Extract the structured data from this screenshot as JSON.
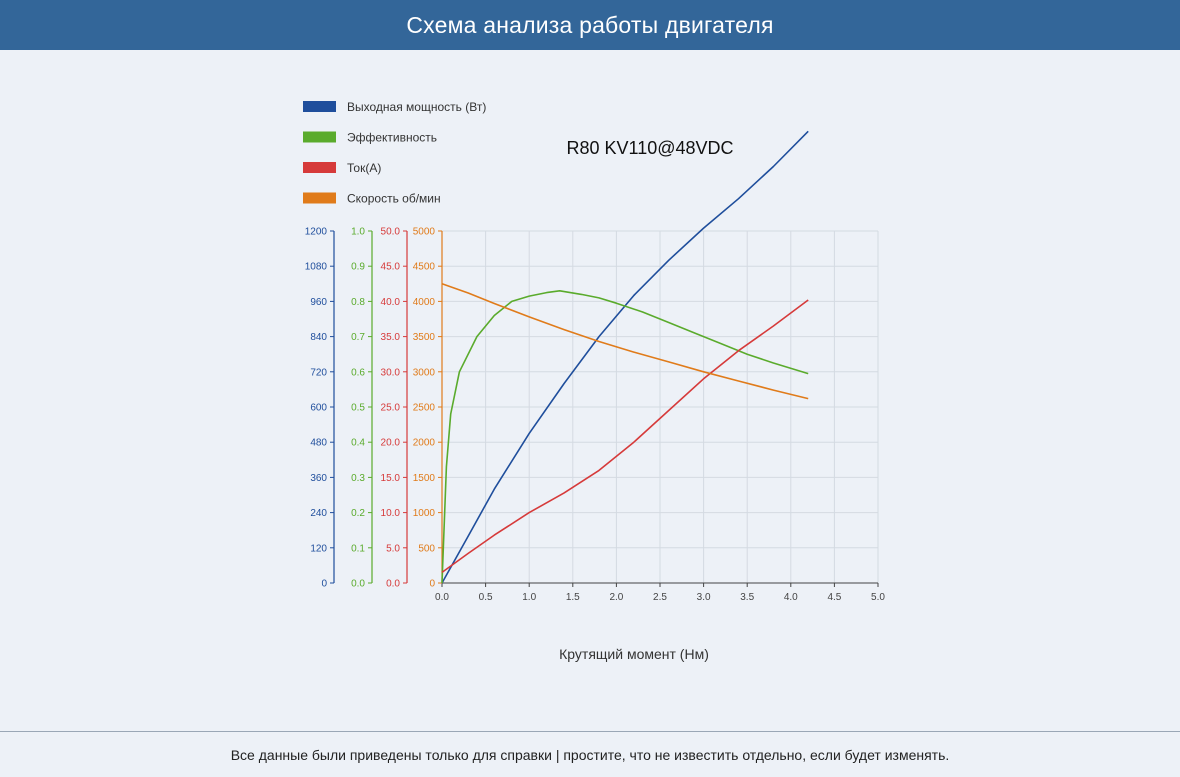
{
  "header": {
    "title": "Схема анализа работы двигателя"
  },
  "footer": {
    "note": "Все данные были приведены только для справки | простите, что не известить отдельно, если будет изменять."
  },
  "colors": {
    "power": "#1f4e9c",
    "efficiency": "#5aab2c",
    "current": "#d63a3a",
    "speed": "#e07b1a",
    "header_bg": "#336699"
  },
  "chart_data": {
    "type": "line",
    "title": "R80 KV110@48VDC",
    "xlabel": "Крутящий момент (Нм)",
    "xlim": [
      0,
      5
    ],
    "xticks": [
      "0.0",
      "0.5",
      "1.0",
      "1.5",
      "2.0",
      "2.5",
      "3.0",
      "3.5",
      "4.0",
      "4.5",
      "5.0"
    ],
    "legend_position": "top-left",
    "grid": true,
    "axes": [
      {
        "series": "power",
        "range": [
          0,
          1200
        ],
        "ticks": [
          "0",
          "120",
          "240",
          "360",
          "480",
          "600",
          "720",
          "840",
          "960",
          "1080",
          "1200"
        ]
      },
      {
        "series": "efficiency",
        "range": [
          0,
          1
        ],
        "ticks": [
          "0.0",
          "0.1",
          "0.2",
          "0.3",
          "0.4",
          "0.5",
          "0.6",
          "0.7",
          "0.8",
          "0.9",
          "1.0"
        ]
      },
      {
        "series": "current",
        "range": [
          0,
          50
        ],
        "ticks": [
          "0.0",
          "5.0",
          "10.0",
          "15.0",
          "20.0",
          "25.0",
          "30.0",
          "35.0",
          "40.0",
          "45.0",
          "50.0"
        ]
      },
      {
        "series": "speed",
        "range": [
          0,
          5000
        ],
        "ticks": [
          "0",
          "500",
          "1000",
          "1500",
          "2000",
          "2500",
          "3000",
          "3500",
          "4000",
          "4500",
          "5000"
        ]
      }
    ],
    "series": [
      {
        "key": "power",
        "name": "Выходная мощность (Вт)",
        "points": [
          [
            0,
            0
          ],
          [
            0.3,
            160
          ],
          [
            0.6,
            320
          ],
          [
            1.0,
            510
          ],
          [
            1.4,
            680
          ],
          [
            1.8,
            840
          ],
          [
            2.2,
            980
          ],
          [
            2.6,
            1100
          ],
          [
            3.0,
            1210
          ],
          [
            3.4,
            1310
          ],
          [
            3.8,
            1420
          ],
          [
            4.2,
            1540
          ]
        ]
      },
      {
        "key": "efficiency",
        "name": "Эффективность",
        "points": [
          [
            0,
            0.0
          ],
          [
            0.05,
            0.33
          ],
          [
            0.1,
            0.48
          ],
          [
            0.2,
            0.6
          ],
          [
            0.4,
            0.7
          ],
          [
            0.6,
            0.76
          ],
          [
            0.8,
            0.8
          ],
          [
            1.0,
            0.815
          ],
          [
            1.2,
            0.825
          ],
          [
            1.35,
            0.83
          ],
          [
            1.6,
            0.82
          ],
          [
            1.8,
            0.81
          ],
          [
            2.0,
            0.795
          ],
          [
            2.3,
            0.77
          ],
          [
            2.6,
            0.74
          ],
          [
            2.9,
            0.71
          ],
          [
            3.2,
            0.68
          ],
          [
            3.5,
            0.65
          ],
          [
            3.8,
            0.625
          ],
          [
            4.2,
            0.595
          ]
        ]
      },
      {
        "key": "current",
        "name": "Ток(А)",
        "points": [
          [
            0,
            1.5
          ],
          [
            0.3,
            4.2
          ],
          [
            0.6,
            6.8
          ],
          [
            1.0,
            10.0
          ],
          [
            1.4,
            12.8
          ],
          [
            1.8,
            16.0
          ],
          [
            2.2,
            20.0
          ],
          [
            2.6,
            24.5
          ],
          [
            3.0,
            29.0
          ],
          [
            3.4,
            33.0
          ],
          [
            3.8,
            36.5
          ],
          [
            4.2,
            40.2
          ]
        ]
      },
      {
        "key": "speed",
        "name": "Скорость об/мин",
        "points": [
          [
            0,
            4250
          ],
          [
            0.3,
            4120
          ],
          [
            0.6,
            3970
          ],
          [
            1.0,
            3780
          ],
          [
            1.4,
            3600
          ],
          [
            1.8,
            3430
          ],
          [
            2.2,
            3280
          ],
          [
            2.6,
            3140
          ],
          [
            3.0,
            3000
          ],
          [
            3.4,
            2870
          ],
          [
            3.8,
            2740
          ],
          [
            4.2,
            2620
          ]
        ]
      }
    ]
  }
}
